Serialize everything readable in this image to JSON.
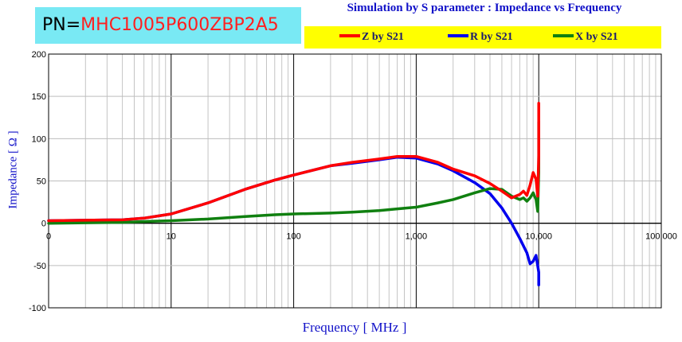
{
  "header": {
    "pn_prefix": "PN=",
    "pn_value": "MHC1005P600ZBP2A5",
    "pn_box_color": "#79e9f4",
    "pn_value_color": "#ff2020"
  },
  "chart_data": {
    "type": "line",
    "title": "Simulation by S parameter : Impedance vs Frequency",
    "xlabel": "Frequency [ MHz ]",
    "ylabel": "Impedance [ Ω ]",
    "x_scale": "log",
    "xlim": [
      1,
      100000
    ],
    "ylim": [
      -100,
      200
    ],
    "x_ticks": [
      1,
      10,
      100,
      1000,
      10000,
      100000
    ],
    "x_tick_labels": [
      "0",
      "10",
      "100",
      "1,000",
      "10,000",
      "100,000"
    ],
    "y_ticks": [
      -100,
      -50,
      0,
      50,
      100,
      150,
      200
    ],
    "y_tick_labels": [
      "-100",
      "-50",
      "0",
      "50",
      "100",
      "150",
      "200"
    ],
    "grid": true,
    "legend": {
      "placement": "top",
      "background": "#ffff00",
      "entries": [
        "Z by S21",
        "R by S21",
        "X by S21"
      ]
    },
    "series": [
      {
        "name": "Z by S21",
        "color": "#ff0000",
        "x": [
          1,
          2,
          4,
          6,
          10,
          20,
          40,
          70,
          100,
          200,
          300,
          500,
          700,
          1000,
          1500,
          2000,
          3000,
          4000,
          5000,
          6000,
          7000,
          7500,
          8000,
          8500,
          9000,
          9500,
          9800,
          10000,
          10000
        ],
        "y": [
          3,
          3.5,
          4,
          6,
          11,
          24,
          40,
          51,
          57,
          68,
          72,
          76,
          79,
          79,
          72,
          64,
          56,
          47,
          38,
          30,
          34,
          38,
          33,
          45,
          60,
          52,
          32,
          80,
          142
        ]
      },
      {
        "name": "R by S21",
        "color": "#0000ee",
        "x": [
          1,
          2,
          4,
          6,
          10,
          20,
          40,
          70,
          100,
          200,
          300,
          500,
          700,
          1000,
          1500,
          2000,
          3000,
          4000,
          5000,
          6000,
          7000,
          8000,
          8500,
          9000,
          9500,
          10000,
          10000
        ],
        "y": [
          3,
          3.5,
          4,
          6,
          11,
          24,
          40,
          51,
          57,
          68,
          71,
          75,
          78,
          77,
          70,
          62,
          48,
          35,
          18,
          0,
          -18,
          -35,
          -48,
          -45,
          -38,
          -58,
          -73
        ]
      },
      {
        "name": "X by S21",
        "color": "#108010",
        "x": [
          1,
          2,
          4,
          6,
          10,
          20,
          40,
          70,
          100,
          200,
          300,
          500,
          700,
          1000,
          1500,
          2000,
          3000,
          4000,
          5000,
          6000,
          7000,
          7500,
          8000,
          8500,
          9000,
          9500,
          9800,
          10000,
          10000
        ],
        "y": [
          0,
          0.5,
          1,
          2,
          3,
          5,
          8,
          10,
          11,
          12,
          13,
          15,
          17,
          19,
          24,
          28,
          36,
          41,
          40,
          32,
          28,
          30,
          26,
          30,
          36,
          28,
          14,
          60,
          120
        ]
      }
    ]
  }
}
